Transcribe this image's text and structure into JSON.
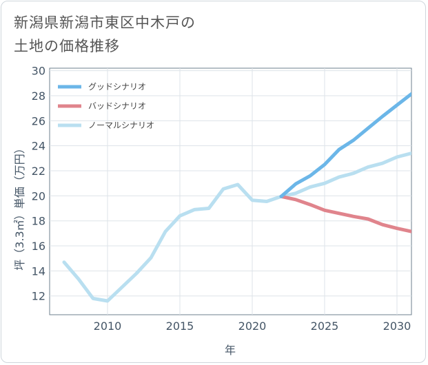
{
  "title_line1": "新潟県新潟市東区中木戸の",
  "title_line2": "土地の価格推移",
  "chart_data": {
    "type": "line",
    "xlabel": "年",
    "ylabel": "坪（3.3㎡）単価（万円）",
    "xlim": [
      2006,
      2031
    ],
    "ylim": [
      10.5,
      30.2
    ],
    "x_ticks": [
      2010,
      2015,
      2020,
      2025,
      2030
    ],
    "y_ticks": [
      12,
      14,
      16,
      18,
      20,
      22,
      24,
      26,
      28,
      30
    ],
    "grid": true,
    "legend_position": "top-left",
    "series": [
      {
        "name": "グッドシナリオ",
        "color": "#6bb6e8",
        "x": [
          2022,
          2023,
          2024,
          2025,
          2026,
          2027,
          2028,
          2029,
          2030,
          2031
        ],
        "y": [
          19.95,
          20.95,
          21.6,
          22.5,
          23.7,
          24.45,
          25.4,
          26.35,
          27.25,
          28.15
        ]
      },
      {
        "name": "バッドシナリオ",
        "color": "#e0848c",
        "x": [
          2022,
          2023,
          2024,
          2025,
          2026,
          2027,
          2028,
          2029,
          2030,
          2031
        ],
        "y": [
          19.95,
          19.7,
          19.3,
          18.85,
          18.6,
          18.35,
          18.15,
          17.7,
          17.4,
          17.15
        ]
      },
      {
        "name": "ノーマルシナリオ",
        "color": "#b9dff0",
        "x": [
          2007,
          2008,
          2009,
          2010,
          2011,
          2012,
          2013,
          2014,
          2015,
          2016,
          2017,
          2018,
          2019,
          2020,
          2021,
          2022,
          2023,
          2024,
          2025,
          2026,
          2027,
          2028,
          2029,
          2030,
          2031
        ],
        "y": [
          14.7,
          13.35,
          11.8,
          11.6,
          12.7,
          13.8,
          15.05,
          17.15,
          18.4,
          18.9,
          19.0,
          20.55,
          20.9,
          19.65,
          19.55,
          19.95,
          20.2,
          20.7,
          21.0,
          21.5,
          21.8,
          22.3,
          22.6,
          23.1,
          23.4
        ]
      }
    ]
  }
}
